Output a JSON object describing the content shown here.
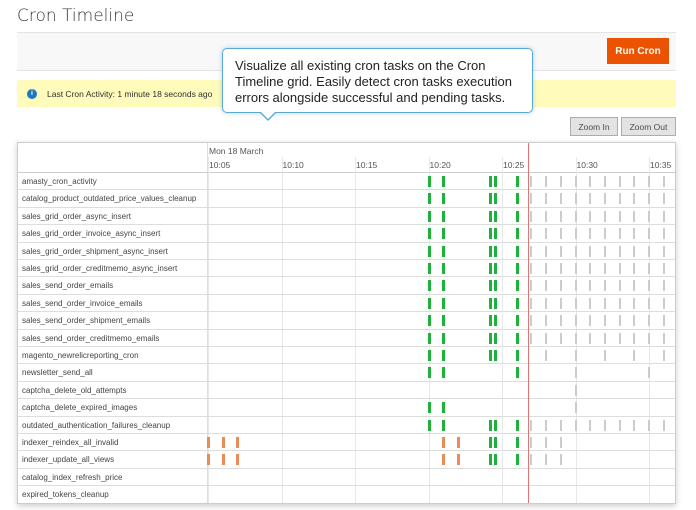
{
  "page_title": "Cron Timeline",
  "toolbar": {
    "run_cron_label": "Run Cron"
  },
  "banner": {
    "icon": "info-icon",
    "text": "Last Cron Activity: 1 minute 18 seconds ago"
  },
  "tooltip": {
    "text": "Visualize all existing cron tasks on the Cron Timeline grid. Easily detect cron tasks execution errors alongside successful and pending tasks."
  },
  "zoom": {
    "zoom_in_label": "Zoom In",
    "zoom_out_label": "Zoom Out"
  },
  "colors": {
    "success": "#1fb13a",
    "error": "#ec8a5a",
    "pending": "#cccccc",
    "now_line": "#e57373",
    "accent": "#eb5202"
  },
  "timeline": {
    "date": "Mon 18 March",
    "ticks": [
      "10:05",
      "10:10",
      "10:15",
      "10:20",
      "10:25",
      "10:30",
      "10:35"
    ],
    "now": "10:26:45",
    "rows": [
      {
        "name": "amasty_cron_activity",
        "preset": "full"
      },
      {
        "name": "catalog_product_outdated_price_values_cleanup",
        "preset": "full"
      },
      {
        "name": "sales_grid_order_async_insert",
        "preset": "full"
      },
      {
        "name": "sales_grid_order_invoice_async_insert",
        "preset": "full"
      },
      {
        "name": "sales_grid_order_shipment_async_insert",
        "preset": "full"
      },
      {
        "name": "sales_grid_order_creditmemo_async_insert",
        "preset": "full"
      },
      {
        "name": "sales_send_order_emails",
        "preset": "full"
      },
      {
        "name": "sales_send_order_invoice_emails",
        "preset": "full"
      },
      {
        "name": "sales_send_order_shipment_emails",
        "preset": "full"
      },
      {
        "name": "sales_send_order_creditmemo_emails",
        "preset": "full"
      },
      {
        "name": "magento_newrelicreporting_cron",
        "success": [
          "10:20",
          "10:21",
          "10:24:10",
          "10:24:30",
          "10:26"
        ],
        "pending": [
          "10:28",
          "10:30",
          "10:32",
          "10:34",
          "10:36"
        ]
      },
      {
        "name": "newsletter_send_all",
        "success": [
          "10:20",
          "10:21",
          "10:26"
        ],
        "pending": [
          "10:30",
          "10:35"
        ]
      },
      {
        "name": "captcha_delete_old_attempts",
        "pending": [
          "10:30"
        ]
      },
      {
        "name": "captcha_delete_expired_images",
        "success": [
          "10:20",
          "10:21"
        ],
        "pending": [
          "10:30"
        ]
      },
      {
        "name": "outdated_authentication_failures_cleanup",
        "preset": "full"
      },
      {
        "name": "indexer_reindex_all_invalid",
        "error": [
          "10:05",
          "10:06",
          "10:07",
          "10:21",
          "10:22"
        ],
        "success": [
          "10:24:10",
          "10:24:30",
          "10:26"
        ],
        "pending": [
          "10:27",
          "10:28",
          "10:29"
        ]
      },
      {
        "name": "indexer_update_all_views",
        "error": [
          "10:05",
          "10:06",
          "10:07",
          "10:21",
          "10:22"
        ],
        "success": [
          "10:24:10",
          "10:24:30",
          "10:26"
        ],
        "pending": [
          "10:27",
          "10:28",
          "10:29"
        ]
      },
      {
        "name": "catalog_index_refresh_price"
      },
      {
        "name": "expired_tokens_cleanup"
      }
    ],
    "full_preset": {
      "success": [
        "10:20",
        "10:21",
        "10:24:10",
        "10:24:30",
        "10:26"
      ],
      "pending": [
        "10:27",
        "10:28",
        "10:29",
        "10:30",
        "10:31",
        "10:32",
        "10:33",
        "10:34",
        "10:35",
        "10:36"
      ]
    }
  }
}
